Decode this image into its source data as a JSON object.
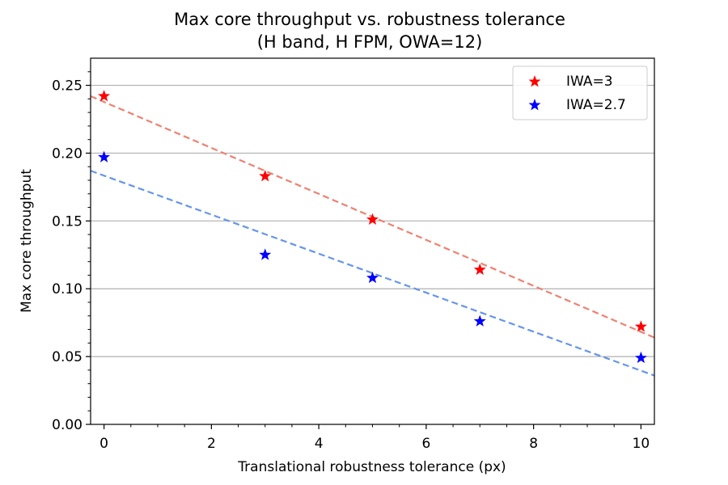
{
  "chart_data": {
    "type": "scatter",
    "title": [
      "Max core throughput vs. robustness tolerance",
      "(H band, H FPM, OWA=12)"
    ],
    "xlabel": "Translational robustness tolerance (px)",
    "ylabel": "Max core throughput",
    "xlim": [
      -0.25,
      10.25
    ],
    "ylim": [
      0.0,
      0.27
    ],
    "xticks": [
      0,
      2,
      4,
      6,
      8,
      10
    ],
    "xtick_labels": [
      "0",
      "2",
      "4",
      "6",
      "8",
      "10"
    ],
    "yticks": [
      0.0,
      0.05,
      0.1,
      0.15,
      0.2,
      0.25
    ],
    "ytick_labels": [
      "0.00",
      "0.05",
      "0.10",
      "0.15",
      "0.20",
      "0.25"
    ],
    "grid": "horizontal",
    "legend_position": "top-right",
    "series": [
      {
        "name": "IWA=3",
        "marker": "star",
        "color": "#ff0000",
        "fit_color": "#f08070",
        "x": [
          0,
          3,
          5,
          7,
          10
        ],
        "y": [
          0.242,
          0.183,
          0.151,
          0.114,
          0.072
        ],
        "fit": {
          "x0": -0.25,
          "y0": 0.242,
          "x1": 10.25,
          "y1": 0.064
        }
      },
      {
        "name": "IWA=2.7",
        "marker": "star",
        "color": "#0000ff",
        "fit_color": "#6495ed",
        "x": [
          0,
          3,
          5,
          7,
          10
        ],
        "y": [
          0.197,
          0.125,
          0.108,
          0.076,
          0.049
        ],
        "fit": {
          "x0": -0.25,
          "y0": 0.187,
          "x1": 10.25,
          "y1": 0.036
        }
      }
    ]
  }
}
